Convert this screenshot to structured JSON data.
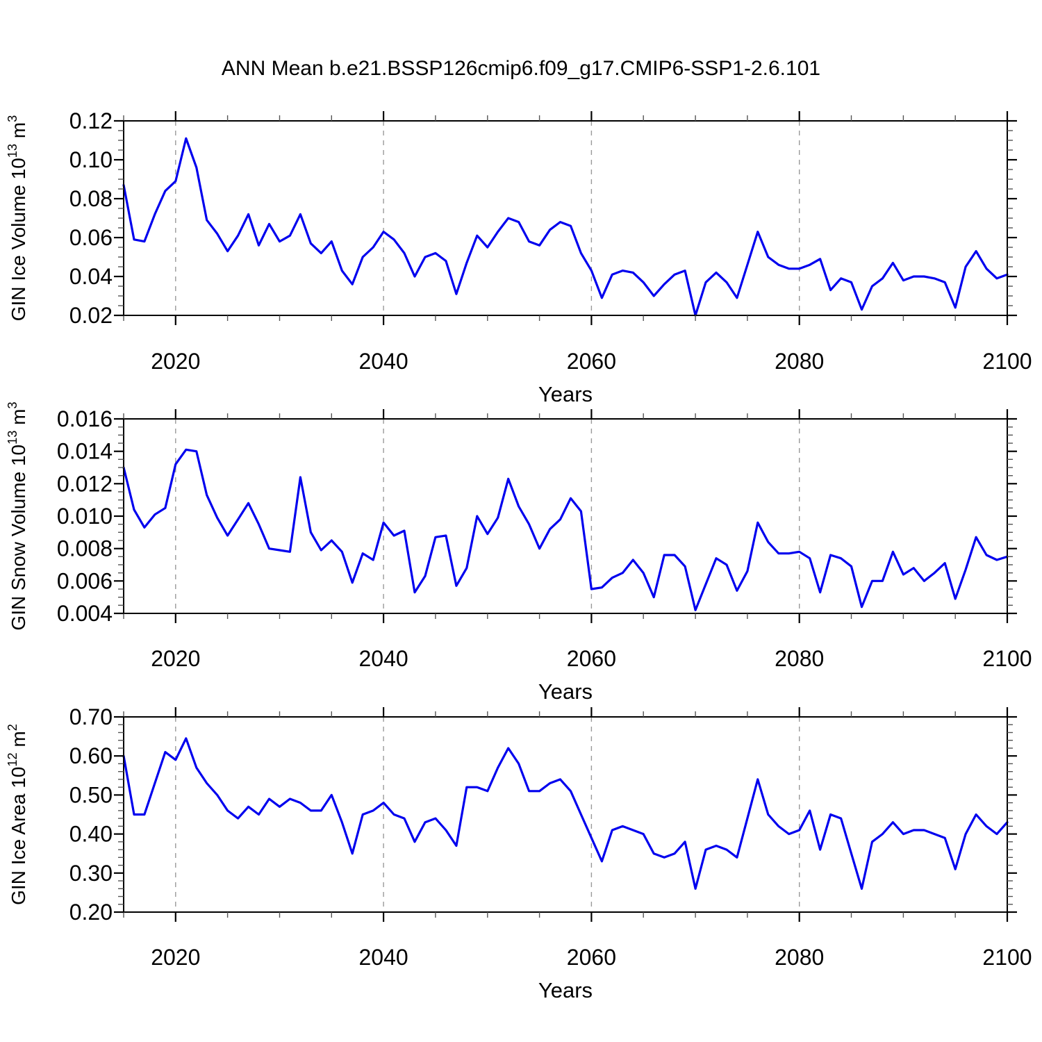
{
  "title": "ANN Mean b.e21.BSSP126cmip6.f09_g17.CMIP6-SSP1-2.6.101",
  "line_color": "#0000ee",
  "chart_data": [
    {
      "id": "gin-ice-volume",
      "type": "line",
      "title": "",
      "xlabel": "Years",
      "ylabel": "GIN Ice Volume 10^13^ m^3^",
      "legend": "none",
      "grid": "vertical-dashed-at-major-xticks",
      "x_range": [
        2015,
        2100
      ],
      "xticks": [
        2020,
        2040,
        2060,
        2080,
        2100
      ],
      "x_minor_step": 5,
      "grid_x": [
        2020,
        2040,
        2060,
        2080
      ],
      "ylim": [
        0.02,
        0.12
      ],
      "yticks": [
        0.02,
        0.04,
        0.06,
        0.08,
        0.1,
        0.12
      ],
      "ytick_labels": [
        "0.02",
        "0.04",
        "0.06",
        "0.08",
        "0.10",
        "0.12"
      ],
      "y_minor_step": 0.005,
      "x": [
        2015,
        2016,
        2017,
        2018,
        2019,
        2020,
        2021,
        2022,
        2023,
        2024,
        2025,
        2026,
        2027,
        2028,
        2029,
        2030,
        2031,
        2032,
        2033,
        2034,
        2035,
        2036,
        2037,
        2038,
        2039,
        2040,
        2041,
        2042,
        2043,
        2044,
        2045,
        2046,
        2047,
        2048,
        2049,
        2050,
        2051,
        2052,
        2053,
        2054,
        2055,
        2056,
        2057,
        2058,
        2059,
        2060,
        2061,
        2062,
        2063,
        2064,
        2065,
        2066,
        2067,
        2068,
        2069,
        2070,
        2071,
        2072,
        2073,
        2074,
        2075,
        2076,
        2077,
        2078,
        2079,
        2080,
        2081,
        2082,
        2083,
        2084,
        2085,
        2086,
        2087,
        2088,
        2089,
        2090,
        2091,
        2092,
        2093,
        2094,
        2095,
        2096,
        2097,
        2098,
        2099,
        2100
      ],
      "values": [
        0.087,
        0.059,
        0.058,
        0.072,
        0.084,
        0.089,
        0.111,
        0.096,
        0.069,
        0.062,
        0.053,
        0.061,
        0.072,
        0.056,
        0.067,
        0.058,
        0.061,
        0.072,
        0.057,
        0.052,
        0.058,
        0.043,
        0.036,
        0.05,
        0.055,
        0.063,
        0.059,
        0.052,
        0.04,
        0.05,
        0.052,
        0.048,
        0.031,
        0.047,
        0.061,
        0.055,
        0.063,
        0.07,
        0.068,
        0.058,
        0.056,
        0.064,
        0.068,
        0.066,
        0.052,
        0.043,
        0.029,
        0.041,
        0.043,
        0.042,
        0.037,
        0.03,
        0.036,
        0.041,
        0.043,
        0.02,
        0.037,
        0.042,
        0.037,
        0.029,
        0.046,
        0.063,
        0.05,
        0.046,
        0.044,
        0.044,
        0.046,
        0.049,
        0.033,
        0.039,
        0.037,
        0.023,
        0.035,
        0.039,
        0.047,
        0.038,
        0.04,
        0.04,
        0.039,
        0.037,
        0.024,
        0.045,
        0.053,
        0.044,
        0.039,
        0.041
      ]
    },
    {
      "id": "gin-snow-volume",
      "type": "line",
      "title": "",
      "xlabel": "Years",
      "ylabel": "GIN Snow Volume 10^13^ m^3^",
      "legend": "none",
      "grid": "vertical-dashed-at-major-xticks",
      "x_range": [
        2015,
        2100
      ],
      "xticks": [
        2020,
        2040,
        2060,
        2080,
        2100
      ],
      "x_minor_step": 5,
      "grid_x": [
        2020,
        2040,
        2060,
        2080
      ],
      "ylim": [
        0.004,
        0.016
      ],
      "yticks": [
        0.004,
        0.006,
        0.008,
        0.01,
        0.012,
        0.014,
        0.016
      ],
      "ytick_labels": [
        "0.004",
        "0.006",
        "0.008",
        "0.010",
        "0.012",
        "0.014",
        "0.016"
      ],
      "y_minor_step": 0.0005,
      "x": [
        2015,
        2016,
        2017,
        2018,
        2019,
        2020,
        2021,
        2022,
        2023,
        2024,
        2025,
        2026,
        2027,
        2028,
        2029,
        2030,
        2031,
        2032,
        2033,
        2034,
        2035,
        2036,
        2037,
        2038,
        2039,
        2040,
        2041,
        2042,
        2043,
        2044,
        2045,
        2046,
        2047,
        2048,
        2049,
        2050,
        2051,
        2052,
        2053,
        2054,
        2055,
        2056,
        2057,
        2058,
        2059,
        2060,
        2061,
        2062,
        2063,
        2064,
        2065,
        2066,
        2067,
        2068,
        2069,
        2070,
        2071,
        2072,
        2073,
        2074,
        2075,
        2076,
        2077,
        2078,
        2079,
        2080,
        2081,
        2082,
        2083,
        2084,
        2085,
        2086,
        2087,
        2088,
        2089,
        2090,
        2091,
        2092,
        2093,
        2094,
        2095,
        2096,
        2097,
        2098,
        2099,
        2100
      ],
      "values": [
        0.013,
        0.0104,
        0.0093,
        0.0101,
        0.0105,
        0.0132,
        0.0141,
        0.014,
        0.0113,
        0.0099,
        0.0088,
        0.0098,
        0.0108,
        0.0095,
        0.008,
        0.0079,
        0.0078,
        0.0124,
        0.009,
        0.0079,
        0.0085,
        0.0078,
        0.0059,
        0.0077,
        0.0073,
        0.0096,
        0.0088,
        0.0091,
        0.0053,
        0.0063,
        0.0087,
        0.0088,
        0.0057,
        0.0068,
        0.01,
        0.0089,
        0.0099,
        0.0123,
        0.0106,
        0.0095,
        0.008,
        0.0092,
        0.0098,
        0.0111,
        0.0103,
        0.0055,
        0.0056,
        0.0062,
        0.0065,
        0.0073,
        0.0065,
        0.005,
        0.0076,
        0.0076,
        0.0069,
        0.0042,
        0.0058,
        0.0074,
        0.007,
        0.0054,
        0.0066,
        0.0096,
        0.0084,
        0.0077,
        0.0077,
        0.0078,
        0.0074,
        0.0053,
        0.0076,
        0.0074,
        0.0069,
        0.0044,
        0.006,
        0.006,
        0.0078,
        0.0064,
        0.0068,
        0.006,
        0.0065,
        0.0071,
        0.0049,
        0.0067,
        0.0087,
        0.0076,
        0.0073,
        0.0075
      ]
    },
    {
      "id": "gin-ice-area",
      "type": "line",
      "title": "",
      "xlabel": "Years",
      "ylabel": "GIN Ice Area 10^12^ m^2^",
      "legend": "none",
      "grid": "vertical-dashed-at-major-xticks",
      "x_range": [
        2015,
        2100
      ],
      "xticks": [
        2020,
        2040,
        2060,
        2080,
        2100
      ],
      "x_minor_step": 5,
      "grid_x": [
        2020,
        2040,
        2060,
        2080
      ],
      "ylim": [
        0.2,
        0.7
      ],
      "yticks": [
        0.2,
        0.3,
        0.4,
        0.5,
        0.6,
        0.7
      ],
      "ytick_labels": [
        "0.20",
        "0.30",
        "0.40",
        "0.50",
        "0.60",
        "0.70"
      ],
      "y_minor_step": 0.02,
      "x": [
        2015,
        2016,
        2017,
        2018,
        2019,
        2020,
        2021,
        2022,
        2023,
        2024,
        2025,
        2026,
        2027,
        2028,
        2029,
        2030,
        2031,
        2032,
        2033,
        2034,
        2035,
        2036,
        2037,
        2038,
        2039,
        2040,
        2041,
        2042,
        2043,
        2044,
        2045,
        2046,
        2047,
        2048,
        2049,
        2050,
        2051,
        2052,
        2053,
        2054,
        2055,
        2056,
        2057,
        2058,
        2059,
        2060,
        2061,
        2062,
        2063,
        2064,
        2065,
        2066,
        2067,
        2068,
        2069,
        2070,
        2071,
        2072,
        2073,
        2074,
        2075,
        2076,
        2077,
        2078,
        2079,
        2080,
        2081,
        2082,
        2083,
        2084,
        2085,
        2086,
        2087,
        2088,
        2089,
        2090,
        2091,
        2092,
        2093,
        2094,
        2095,
        2096,
        2097,
        2098,
        2099,
        2100
      ],
      "values": [
        0.6,
        0.45,
        0.45,
        0.53,
        0.61,
        0.59,
        0.645,
        0.57,
        0.53,
        0.5,
        0.46,
        0.44,
        0.47,
        0.45,
        0.49,
        0.47,
        0.49,
        0.48,
        0.46,
        0.46,
        0.5,
        0.43,
        0.35,
        0.45,
        0.46,
        0.48,
        0.45,
        0.44,
        0.38,
        0.43,
        0.44,
        0.41,
        0.37,
        0.52,
        0.52,
        0.51,
        0.57,
        0.62,
        0.58,
        0.51,
        0.51,
        0.53,
        0.54,
        0.51,
        0.45,
        0.39,
        0.33,
        0.41,
        0.42,
        0.41,
        0.4,
        0.35,
        0.34,
        0.35,
        0.38,
        0.26,
        0.36,
        0.37,
        0.36,
        0.34,
        0.44,
        0.54,
        0.45,
        0.42,
        0.4,
        0.41,
        0.46,
        0.36,
        0.45,
        0.44,
        0.35,
        0.26,
        0.38,
        0.4,
        0.43,
        0.4,
        0.41,
        0.41,
        0.4,
        0.39,
        0.31,
        0.4,
        0.45,
        0.42,
        0.4,
        0.43
      ]
    }
  ]
}
